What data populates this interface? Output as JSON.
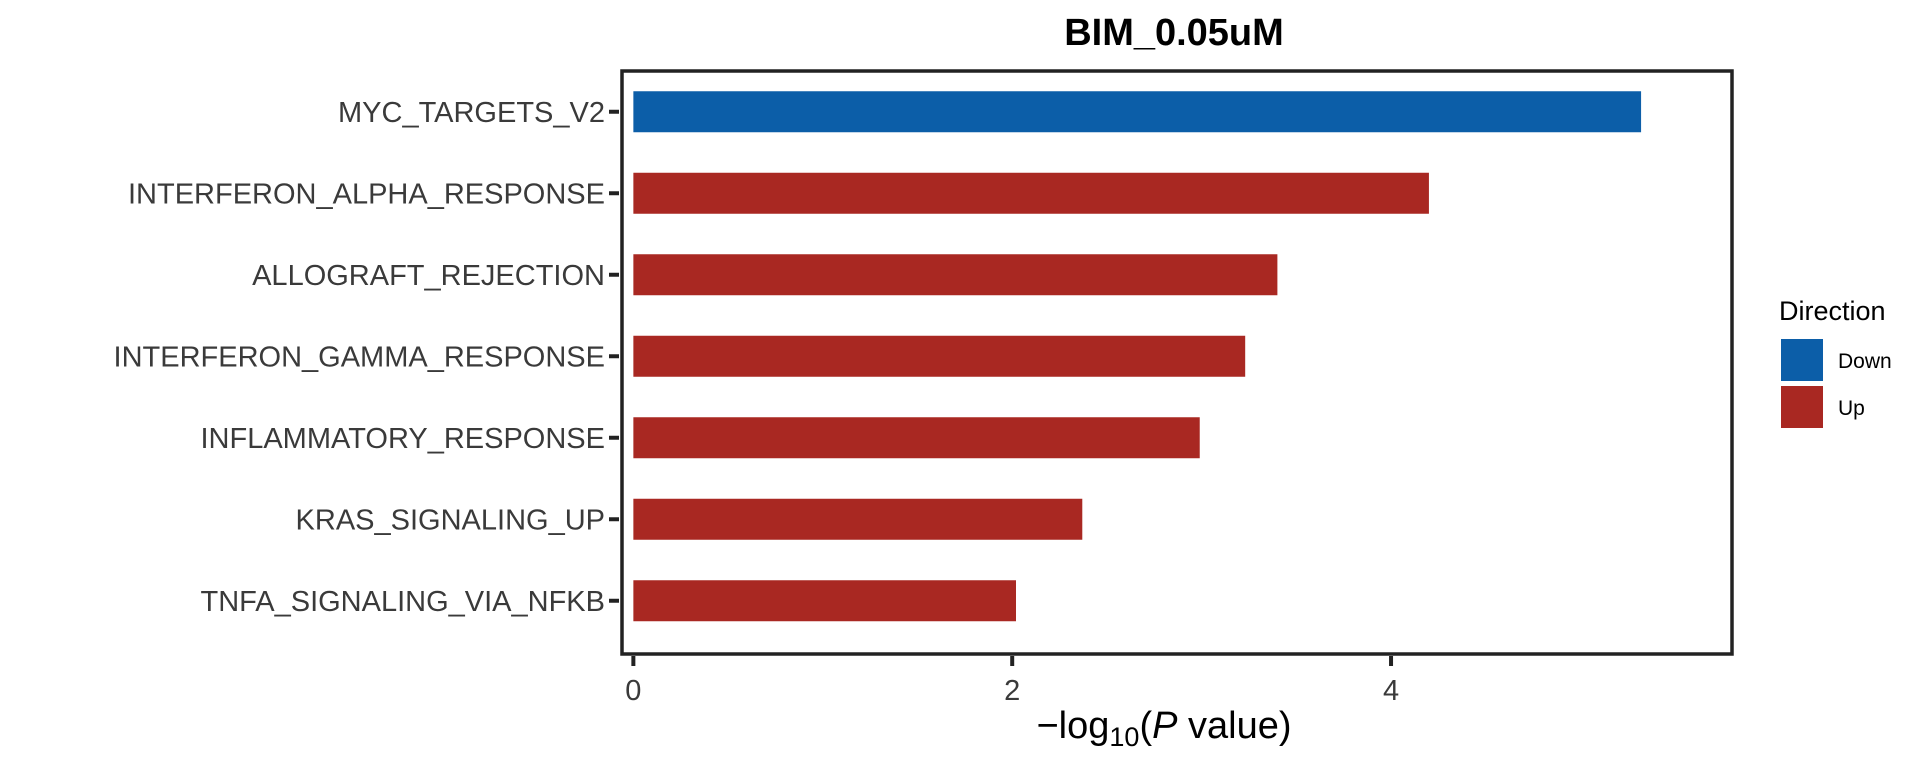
{
  "chart_data": {
    "type": "bar",
    "orientation": "horizontal",
    "title": "BIM_0.05uM",
    "xlabel": {
      "prefix": "−log",
      "subscript": "10",
      "open": "(",
      "italic": "P",
      "rest": " value)"
    },
    "ylabel": "",
    "xlim": [
      -0.06,
      5.8
    ],
    "xticks": [
      0,
      2,
      4
    ],
    "grid": false,
    "legend": {
      "title": "Direction",
      "position": "right",
      "entries": [
        {
          "label": "Down",
          "color": "#0c5ea8"
        },
        {
          "label": "Up",
          "color": "#a92822"
        }
      ]
    },
    "bars": [
      {
        "category": "MYC_TARGETS_V2",
        "value": 5.32,
        "direction": "Down"
      },
      {
        "category": "INTERFERON_ALPHA_RESPONSE",
        "value": 4.2,
        "direction": "Up"
      },
      {
        "category": "ALLOGRAFT_REJECTION",
        "value": 3.4,
        "direction": "Up"
      },
      {
        "category": "INTERFERON_GAMMA_RESPONSE",
        "value": 3.23,
        "direction": "Up"
      },
      {
        "category": "INFLAMMATORY_RESPONSE",
        "value": 2.99,
        "direction": "Up"
      },
      {
        "category": "KRAS_SIGNALING_UP",
        "value": 2.37,
        "direction": "Up"
      },
      {
        "category": "TNFA_SIGNALING_VIA_NFKB",
        "value": 2.02,
        "direction": "Up"
      }
    ]
  }
}
